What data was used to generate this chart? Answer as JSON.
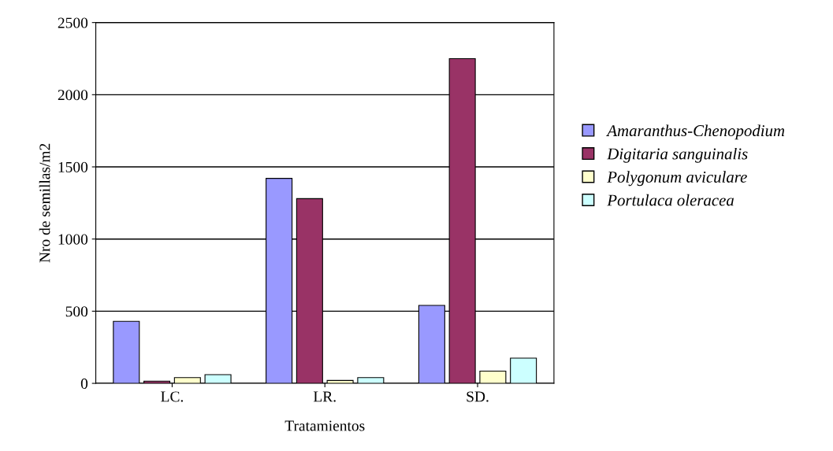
{
  "chart_data": {
    "type": "bar",
    "xlabel": "Tratamientos",
    "ylabel": "Nro de semillas/m2",
    "categories": [
      "LC.",
      "LR.",
      "SD."
    ],
    "series": [
      {
        "name": "Amaranthus-Chenopodium",
        "color": "#9999ff",
        "values": [
          430,
          1420,
          540
        ]
      },
      {
        "name": "Digitaria sanguinalis",
        "color": "#993366",
        "values": [
          15,
          1280,
          2250
        ]
      },
      {
        "name": "Polygonum aviculare",
        "color": "#ffffcc",
        "values": [
          40,
          20,
          85
        ]
      },
      {
        "name": "Portulaca oleracea",
        "color": "#ccffff",
        "values": [
          60,
          40,
          175
        ]
      }
    ],
    "ylim": [
      0,
      2500
    ],
    "yticks": [
      0,
      500,
      1000,
      1500,
      2000,
      2500
    ],
    "grid": "y",
    "legend": "right"
  }
}
